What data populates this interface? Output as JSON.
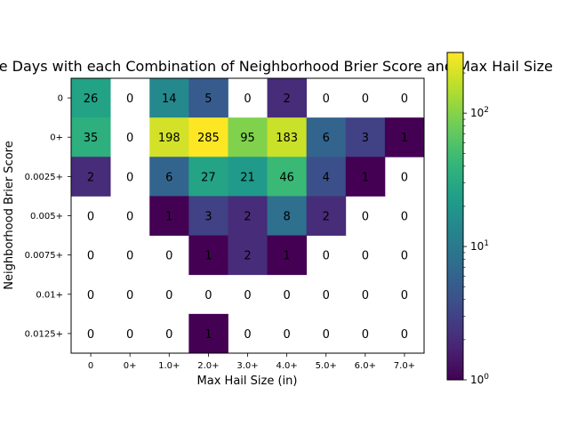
{
  "chart_data": {
    "type": "heatmap",
    "title": "Separate Days with each Combination of Neighborhood Brier Score and Max Hail Size",
    "xlabel": "Max Hail Size (in)",
    "ylabel": "Neighborhood Brier Score",
    "x_categories": [
      "0",
      "0+",
      "1.0+",
      "2.0+",
      "3.0+",
      "4.0+",
      "5.0+",
      "6.0+",
      "7.0+"
    ],
    "y_categories": [
      "0",
      "0+",
      "0.0025+",
      "0.005+",
      "0.0075+",
      "0.01+",
      "0.0125+"
    ],
    "values": [
      [
        26,
        0,
        14,
        5,
        0,
        2,
        0,
        0,
        0
      ],
      [
        35,
        0,
        198,
        285,
        95,
        183,
        6,
        3,
        1
      ],
      [
        2,
        0,
        6,
        27,
        21,
        46,
        4,
        1,
        0
      ],
      [
        0,
        0,
        1,
        3,
        2,
        8,
        2,
        0,
        0
      ],
      [
        0,
        0,
        0,
        1,
        2,
        1,
        0,
        0,
        0
      ],
      [
        0,
        0,
        0,
        0,
        0,
        0,
        0,
        0,
        0
      ],
      [
        0,
        0,
        0,
        1,
        0,
        0,
        0,
        0,
        0
      ]
    ],
    "colorbar": {
      "scale": "log",
      "range": [
        1,
        285
      ],
      "colormap": "viridis",
      "ticks": [
        {
          "value": 1,
          "base": "10",
          "exp": "0"
        },
        {
          "value": 10,
          "base": "10",
          "exp": "1"
        },
        {
          "value": 100,
          "base": "10",
          "exp": "2"
        }
      ]
    }
  }
}
